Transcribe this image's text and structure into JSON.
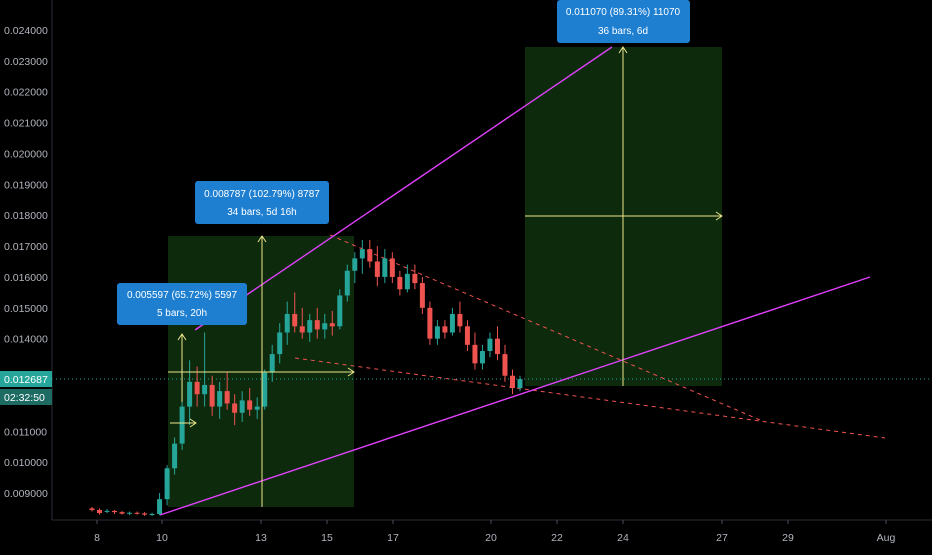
{
  "colors": {
    "background": "#000000",
    "up": "#26a69a",
    "down": "#ef5350",
    "trendline": "#e040fb",
    "measure": "#f0e68c",
    "zone": "#0d2a0d",
    "label_bg": "#1e7fd1",
    "price_tag": "#26a69a",
    "grid_text": "#b2b5be"
  },
  "price_axis": {
    "ticks": [
      "0.024000",
      "0.023000",
      "0.022000",
      "0.021000",
      "0.020000",
      "0.019000",
      "0.018000",
      "0.017000",
      "0.016000",
      "0.015000",
      "0.014000",
      "0.013000",
      "0.012000",
      "0.011000",
      "0.010000",
      "0.009000"
    ],
    "current_price": "0.012687",
    "countdown": "02:32:50"
  },
  "time_axis": {
    "ticks": [
      "8",
      "10",
      "13",
      "15",
      "17",
      "20",
      "22",
      "24",
      "27",
      "29",
      "Aug"
    ]
  },
  "annotations": [
    {
      "line1": "0.005597 (65.72%) 5597",
      "line2": "5 bars, 20h"
    },
    {
      "line1": "0.008787 (102.79%) 8787",
      "line2": "34 bars, 5d 16h"
    },
    {
      "line1": "0.011070 (89.31%) 11070",
      "line2": "36 bars, 6d"
    }
  ],
  "chart_data": {
    "type": "candlestick",
    "title": "",
    "ylim": [
      0.0085,
      0.0246
    ],
    "x_axis": "date (July, hourly-ish candles)",
    "candles": [
      [
        0.0085,
        0.00855,
        0.0084,
        0.00845
      ],
      [
        0.00845,
        0.0085,
        0.0083,
        0.00835
      ],
      [
        0.0084,
        0.00848,
        0.00835,
        0.00842
      ],
      [
        0.00842,
        0.00845,
        0.00832,
        0.00838
      ],
      [
        0.00838,
        0.00842,
        0.0083,
        0.00833
      ],
      [
        0.00833,
        0.0084,
        0.00828,
        0.00836
      ],
      [
        0.00836,
        0.0084,
        0.0083,
        0.00834
      ],
      [
        0.00834,
        0.00838,
        0.00826,
        0.0083
      ],
      [
        0.0083,
        0.00836,
        0.00826,
        0.00832
      ],
      [
        0.00832,
        0.009,
        0.00828,
        0.0088
      ],
      [
        0.0088,
        0.0099,
        0.0086,
        0.0098
      ],
      [
        0.0098,
        0.0108,
        0.0096,
        0.0106
      ],
      [
        0.0106,
        0.013,
        0.0104,
        0.0118
      ],
      [
        0.0118,
        0.0133,
        0.0112,
        0.0126
      ],
      [
        0.0126,
        0.0131,
        0.0118,
        0.0122
      ],
      [
        0.0122,
        0.0142,
        0.0118,
        0.0125
      ],
      [
        0.0125,
        0.0128,
        0.0115,
        0.0118
      ],
      [
        0.0118,
        0.0126,
        0.0114,
        0.0123
      ],
      [
        0.0123,
        0.0129,
        0.0117,
        0.0119
      ],
      [
        0.0119,
        0.0122,
        0.0112,
        0.0116
      ],
      [
        0.0116,
        0.0123,
        0.0113,
        0.012
      ],
      [
        0.012,
        0.0124,
        0.0115,
        0.0117
      ],
      [
        0.0117,
        0.0121,
        0.0114,
        0.0118
      ],
      [
        0.0118,
        0.013,
        0.0117,
        0.0129
      ],
      [
        0.0129,
        0.0138,
        0.0126,
        0.0135
      ],
      [
        0.0135,
        0.0145,
        0.0132,
        0.0142
      ],
      [
        0.0142,
        0.0152,
        0.0138,
        0.0148
      ],
      [
        0.0148,
        0.0155,
        0.0142,
        0.0144
      ],
      [
        0.0144,
        0.015,
        0.014,
        0.0142
      ],
      [
        0.0142,
        0.0148,
        0.0139,
        0.0146
      ],
      [
        0.0146,
        0.015,
        0.014,
        0.0143
      ],
      [
        0.0143,
        0.0148,
        0.014,
        0.0145
      ],
      [
        0.0145,
        0.0149,
        0.0141,
        0.0144
      ],
      [
        0.0144,
        0.0156,
        0.0143,
        0.0154
      ],
      [
        0.0154,
        0.0164,
        0.0152,
        0.0162
      ],
      [
        0.0162,
        0.0168,
        0.0158,
        0.0166
      ],
      [
        0.0166,
        0.0172,
        0.0161,
        0.0169
      ],
      [
        0.0169,
        0.0172,
        0.0163,
        0.0165
      ],
      [
        0.0165,
        0.017,
        0.0157,
        0.016
      ],
      [
        0.016,
        0.0169,
        0.0158,
        0.0166
      ],
      [
        0.0166,
        0.0168,
        0.0158,
        0.016
      ],
      [
        0.016,
        0.0162,
        0.0154,
        0.0156
      ],
      [
        0.0156,
        0.0164,
        0.0155,
        0.0161
      ],
      [
        0.0161,
        0.0164,
        0.0156,
        0.0158
      ],
      [
        0.0158,
        0.016,
        0.0148,
        0.015
      ],
      [
        0.015,
        0.0152,
        0.0138,
        0.014
      ],
      [
        0.014,
        0.0146,
        0.0138,
        0.0144
      ],
      [
        0.0144,
        0.0146,
        0.014,
        0.0142
      ],
      [
        0.0142,
        0.015,
        0.0141,
        0.0148
      ],
      [
        0.0148,
        0.0152,
        0.0142,
        0.0144
      ],
      [
        0.0144,
        0.0146,
        0.0136,
        0.0138
      ],
      [
        0.0138,
        0.0142,
        0.013,
        0.0132
      ],
      [
        0.0132,
        0.0138,
        0.013,
        0.0136
      ],
      [
        0.0136,
        0.0142,
        0.0134,
        0.014
      ],
      [
        0.014,
        0.0144,
        0.0133,
        0.0135
      ],
      [
        0.0135,
        0.0138,
        0.0126,
        0.0128
      ],
      [
        0.0128,
        0.013,
        0.0122,
        0.0124
      ],
      [
        0.0124,
        0.0128,
        0.0123,
        0.01269
      ]
    ],
    "trendlines": [
      {
        "name": "upper resistance",
        "from": [
          0,
          0.0141
        ],
        "to": [
          1,
          0.0236
        ]
      },
      {
        "name": "lower support",
        "from": [
          0,
          0.0085
        ],
        "to": [
          1,
          0.016
        ]
      }
    ]
  }
}
